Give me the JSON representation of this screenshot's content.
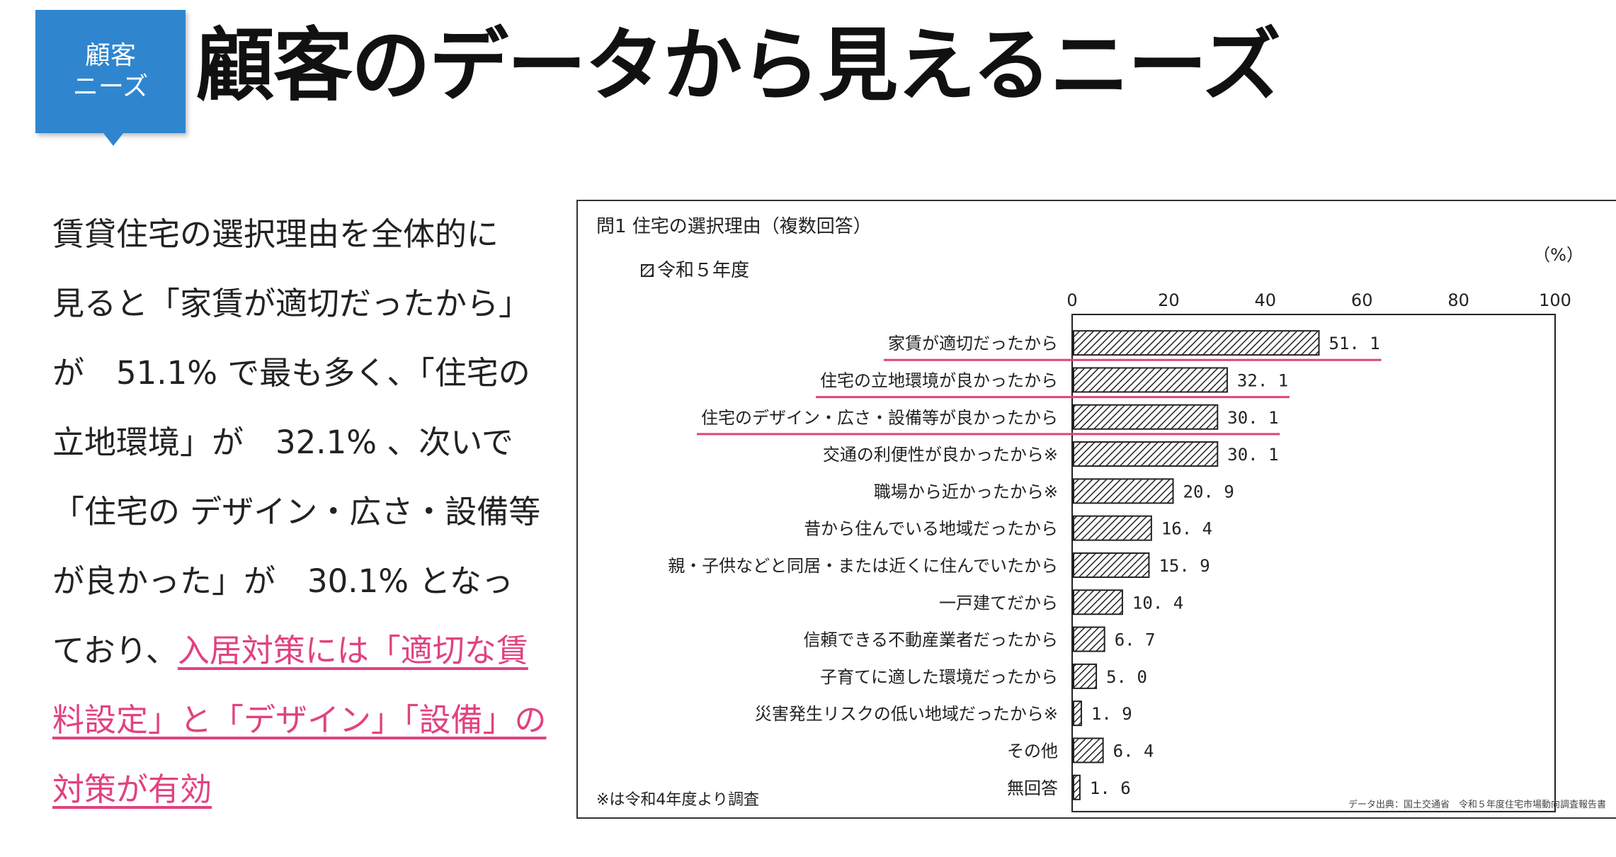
{
  "badge": {
    "line1": "顧客",
    "line2": "ニーズ"
  },
  "page_title": "顧客のデータから見えるニーズ",
  "body_lines": [
    "賃貸住宅の選択理由を全体的に",
    "見ると「家賃が適切だったから」",
    "が　51.1% で最も多く、「住宅の",
    "立地環境」が　32.1% 、次いで",
    "「住宅の デザイン・広さ・設備等",
    "が良かった」が　30.1% となっ",
    "ており、"
  ],
  "body_highlight": [
    "入居対策には「適切な賃",
    "料設定」と「デザイン」「設備」の",
    "対策が有効"
  ],
  "accent_colors": {
    "badge": "#2f86cf",
    "highlight": "#e0437f",
    "bar_stroke": "#222222"
  },
  "chart_data": {
    "type": "bar",
    "orientation": "horizontal",
    "title": "問1 住宅の選択理由（複数回答）",
    "unit": "（%）",
    "legend": "令和５年度",
    "legend_placement": "top-left",
    "xlim": [
      0,
      100
    ],
    "ticks": [
      "0",
      "20",
      "40",
      "60",
      "80",
      "100"
    ],
    "tick_values": [
      0,
      20,
      40,
      60,
      80,
      100
    ],
    "grid": false,
    "categories": [
      "家賃が適切だったから",
      "住宅の立地環境が良かったから",
      "住宅のデザイン・広さ・設備等が良かったから",
      "交通の利便性が良かったから※",
      "職場から近かったから※",
      "昔から住んでいる地域だったから",
      "親・子供などと同居・または近くに住んでいたから",
      "一戸建てだから",
      "信頼できる不動産業者だったから",
      "子育てに適した環境だったから",
      "災害発生リスクの低い地域だったから※",
      "その他",
      "無回答"
    ],
    "values": [
      51.1,
      32.1,
      30.1,
      30.1,
      20.9,
      16.4,
      15.9,
      10.4,
      6.7,
      5.0,
      1.9,
      6.4,
      1.6
    ],
    "value_labels": [
      "51. 1",
      "32. 1",
      "30. 1",
      "30. 1",
      "20. 9",
      "16. 4",
      "15. 9",
      "10. 4",
      "6. 7",
      "5. 0",
      "1. 9",
      "6. 4",
      "1. 6"
    ],
    "underlined_categories": [
      0,
      1,
      2
    ],
    "footnote": "※は令和4年度より調査"
  },
  "source_note": "データ出典：国土交通省　令和５年度住宅市場動向調査報告書"
}
